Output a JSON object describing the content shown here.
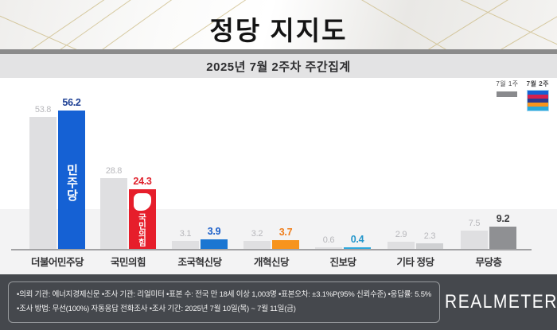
{
  "header": {
    "title": "정당 지지도",
    "subtitle": "2025년 7월 2주차 주간집계"
  },
  "legend": {
    "prev_label": "7월 1주",
    "prev_color": "#898a8d",
    "curr_label": "7월 2주",
    "curr_stripe_colors": [
      "#1561d4",
      "#d6204d",
      "#2b3a8f",
      "#f7941d",
      "#29a9dd"
    ]
  },
  "chart_data": {
    "type": "bar",
    "title": "정당 지지도",
    "subtitle": "2025년 7월 2주차 주간집계",
    "categories": [
      "더불어민주당",
      "국민의힘",
      "조국혁신당",
      "개혁신당",
      "진보당",
      "기타 정당",
      "무당층"
    ],
    "series": [
      {
        "name": "7월 1주",
        "values": [
          53.8,
          28.8,
          3.1,
          3.2,
          0.6,
          2.9,
          7.5
        ],
        "bar_color": "#dfdfe1",
        "value_color": "#b7b7bb"
      },
      {
        "name": "7월 2주",
        "values": [
          56.2,
          24.3,
          3.9,
          3.7,
          0.4,
          2.3,
          9.2
        ],
        "bar_colors": [
          "#1561d4",
          "#e61e2b",
          "#1b76d2",
          "#f7941d",
          "#2fa8dc",
          "#cfd0d2",
          "#8f9093"
        ],
        "value_colors": [
          "#1c3f94",
          "#e0232e",
          "#1b5fc9",
          "#ef7d1a",
          "#2496cb",
          "#b7b7bb",
          "#3c3c3e"
        ],
        "value_bold": [
          true,
          true,
          true,
          true,
          true,
          false,
          true
        ]
      }
    ],
    "bar_logos": {
      "0": "민주당",
      "1": "국민의힘"
    },
    "ylim": [
      0,
      60
    ],
    "grid": false,
    "legend_position": "top-right"
  },
  "footer": {
    "line1": "•의뢰 기관: 에너지경제신문  •조사 기관: 리얼미터 •표본 수: 전국 만 18세 이상 1,003명 •표본오차: ±3.1%P(95% 신뢰수준) •응답률: 5.5%",
    "line2": "•조사 방법: 무선(100%) 자동응답 전화조사 •조사 기간: 2025년 7월 10일(목) ~ 7월 11일(금)",
    "logo": "REALMETER"
  }
}
